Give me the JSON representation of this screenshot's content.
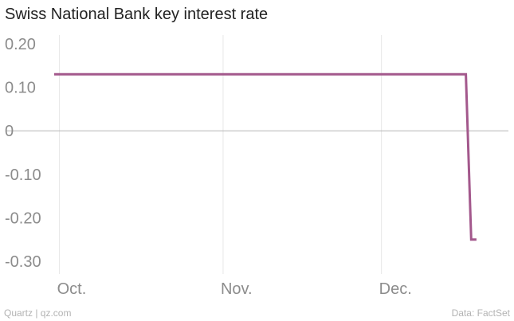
{
  "title": "Swiss National Bank key interest rate",
  "footer": {
    "credit": "Quartz | qz.com",
    "source": "Data: FactSet"
  },
  "colors": {
    "line": "#a3588c",
    "zero_line": "#b5b5b5",
    "grid": "#e6e6e6",
    "tick_text": "#8c8c8c"
  },
  "chart_data": {
    "type": "line",
    "title": "Swiss National Bank key interest rate",
    "xlabel": "",
    "ylabel": "",
    "x_type": "date",
    "x_ticks": [
      {
        "date": "2014-10-01",
        "label": "Oct."
      },
      {
        "date": "2014-11-01",
        "label": "Nov."
      },
      {
        "date": "2014-12-01",
        "label": "Dec."
      }
    ],
    "y_ticks": [
      0.2,
      0.1,
      0,
      -0.1,
      -0.2,
      -0.3
    ],
    "y_tick_labels": [
      "0.20",
      "0.10",
      "0",
      "-0.10",
      "-0.20",
      "-0.30"
    ],
    "ylim": [
      -0.34,
      0.22
    ],
    "xlim": [
      "2014-09-30",
      "2014-12-24"
    ],
    "grid": "vertical at x ticks",
    "series": [
      {
        "values": [
          {
            "x": "2014-09-30",
            "y": 0.13
          },
          {
            "x": "2014-12-17",
            "y": 0.13
          },
          {
            "x": "2014-12-18",
            "y": -0.25
          },
          {
            "x": "2014-12-19",
            "y": -0.25
          }
        ]
      }
    ]
  }
}
